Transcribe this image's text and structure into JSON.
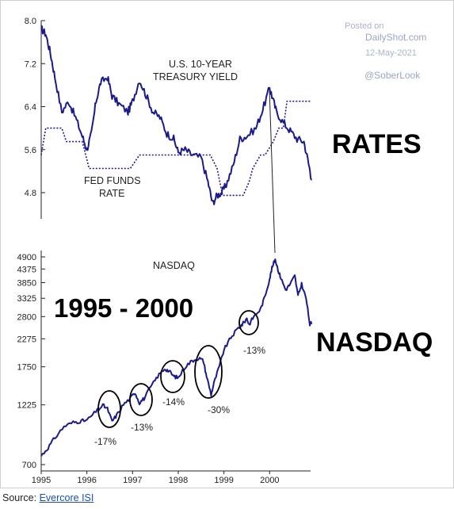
{
  "watermark": {
    "posted_on": "Posted on",
    "site": "DailyShot.com",
    "date": "12-May-2021",
    "handle": "@SoberLook"
  },
  "source": {
    "label": "Source:",
    "link_text": "Evercore ISI"
  },
  "chart_data": [
    {
      "type": "line",
      "big_label": "RATES",
      "ylim": [
        4.8,
        8.0
      ],
      "yticks": [
        "8.0",
        "7.2",
        "6.4",
        "5.6",
        "4.8"
      ],
      "colors": {
        "line": "#1a1a8c"
      },
      "series": [
        {
          "name": "U.S. 10-YEAR TREASURY YIELD",
          "style": "solid",
          "x": [
            1995.0,
            1995.1,
            1995.2,
            1995.3,
            1995.45,
            1995.6,
            1995.75,
            1995.9,
            1996.0,
            1996.1,
            1996.2,
            1996.3,
            1996.45,
            1996.55,
            1996.7,
            1996.9,
            1997.0,
            1997.15,
            1997.3,
            1997.45,
            1997.6,
            1997.75,
            1997.9,
            1998.0,
            1998.15,
            1998.3,
            1998.5,
            1998.65,
            1998.75,
            1998.85,
            1998.95,
            1999.05,
            1999.2,
            1999.35,
            1999.5,
            1999.7,
            1999.85,
            2000.0,
            2000.05,
            2000.15,
            2000.3,
            2000.45,
            2000.6,
            2000.75,
            2000.85,
            2000.92
          ],
          "y": [
            7.85,
            7.75,
            7.4,
            6.95,
            6.3,
            6.5,
            6.2,
            5.85,
            5.6,
            5.9,
            6.5,
            6.85,
            6.95,
            6.6,
            6.45,
            6.3,
            6.5,
            6.9,
            6.6,
            6.3,
            6.2,
            5.9,
            5.8,
            5.55,
            5.6,
            5.5,
            5.45,
            5.0,
            4.6,
            4.75,
            4.8,
            4.95,
            5.3,
            5.8,
            5.85,
            6.0,
            6.35,
            6.75,
            6.6,
            6.3,
            6.1,
            5.95,
            5.8,
            5.75,
            5.35,
            5.05
          ]
        },
        {
          "name": "FED FUNDS RATE",
          "style": "dotted",
          "x": [
            1995.0,
            1995.1,
            1995.45,
            1995.55,
            1995.9,
            1996.05,
            1996.95,
            1997.15,
            1998.7,
            1998.85,
            1998.97,
            1999.42,
            1999.55,
            1999.63,
            1999.8,
            1999.9,
            2000.08,
            2000.2,
            2000.3,
            2000.38,
            2000.92
          ],
          "y": [
            5.5,
            6.0,
            6.0,
            5.75,
            5.75,
            5.25,
            5.25,
            5.5,
            5.5,
            5.25,
            4.75,
            4.75,
            5.0,
            5.25,
            5.5,
            5.5,
            5.75,
            6.0,
            6.0,
            6.5,
            6.5
          ]
        }
      ]
    },
    {
      "type": "line",
      "title": "NASDAQ",
      "big_label": "NASDAQ",
      "range_label": "1995 - 2000",
      "scale": "log",
      "ylim": [
        700,
        4900
      ],
      "yticks": [
        "4900",
        "4375",
        "3850",
        "3325",
        "2800",
        "2275",
        "1750",
        "1225",
        "700"
      ],
      "xticks": [
        "1995",
        "1996",
        "1997",
        "1998",
        "1999",
        "2000"
      ],
      "colors": {
        "line": "#1a1a8c"
      },
      "series": [
        {
          "name": "NASDAQ",
          "x": [
            1995.0,
            1995.15,
            1995.3,
            1995.5,
            1995.7,
            1995.85,
            1996.0,
            1996.2,
            1996.35,
            1996.45,
            1996.55,
            1996.65,
            1996.8,
            1996.95,
            1997.05,
            1997.15,
            1997.25,
            1997.4,
            1997.55,
            1997.7,
            1997.8,
            1997.9,
            1998.0,
            1998.15,
            1998.3,
            1998.45,
            1998.55,
            1998.62,
            1998.72,
            1998.78,
            1998.9,
            1999.0,
            1999.15,
            1999.3,
            1999.4,
            1999.5,
            1999.55,
            1999.65,
            1999.8,
            1999.9,
            2000.0,
            2000.05,
            2000.12,
            2000.2,
            2000.25,
            2000.35,
            2000.45,
            2000.55,
            2000.62,
            2000.7,
            2000.8,
            2000.88,
            2000.92
          ],
          "y": [
            760,
            820,
            900,
            1000,
            1040,
            1050,
            1060,
            1150,
            1220,
            1180,
            1050,
            1110,
            1230,
            1300,
            1380,
            1250,
            1300,
            1450,
            1600,
            1720,
            1680,
            1600,
            1580,
            1750,
            1850,
            1900,
            1850,
            1600,
            1350,
            1500,
            1760,
            2050,
            2300,
            2500,
            2600,
            2750,
            2600,
            2800,
            3000,
            3400,
            4000,
            4400,
            4800,
            4250,
            4000,
            3600,
            3800,
            4100,
            3400,
            3800,
            3300,
            2600,
            2650
          ]
        }
      ],
      "annotations": [
        "-17%",
        "-13%",
        "-14%",
        "-30%",
        "-13%"
      ]
    }
  ]
}
